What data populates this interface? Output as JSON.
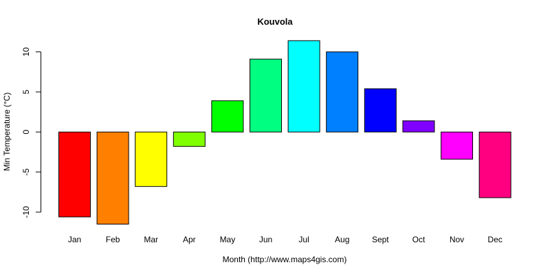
{
  "chart_data": {
    "type": "bar",
    "title": "Kouvola",
    "xlabel": "Month (http://www.maps4gis.com)",
    "ylabel": "Min Temperature (°C)",
    "categories": [
      "Jan",
      "Feb",
      "Mar",
      "Apr",
      "May",
      "Jun",
      "Jul",
      "Aug",
      "Sept",
      "Oct",
      "Nov",
      "Dec"
    ],
    "values": [
      -10.6,
      -11.5,
      -6.8,
      -1.8,
      3.9,
      9.1,
      11.4,
      10.0,
      5.4,
      1.4,
      -3.4,
      -8.2
    ],
    "colors": [
      "#FF0000",
      "#FF8000",
      "#FFFF00",
      "#80FF00",
      "#00FF00",
      "#00FF80",
      "#00FFFF",
      "#0080FF",
      "#0000FF",
      "#8000FF",
      "#FF00FF",
      "#FF0080"
    ],
    "yticks": [
      -10,
      -5,
      0,
      5,
      10
    ],
    "ytick_labels": [
      "-10",
      "-5",
      "0",
      "5",
      "10"
    ],
    "grid": false,
    "legend": "none"
  }
}
